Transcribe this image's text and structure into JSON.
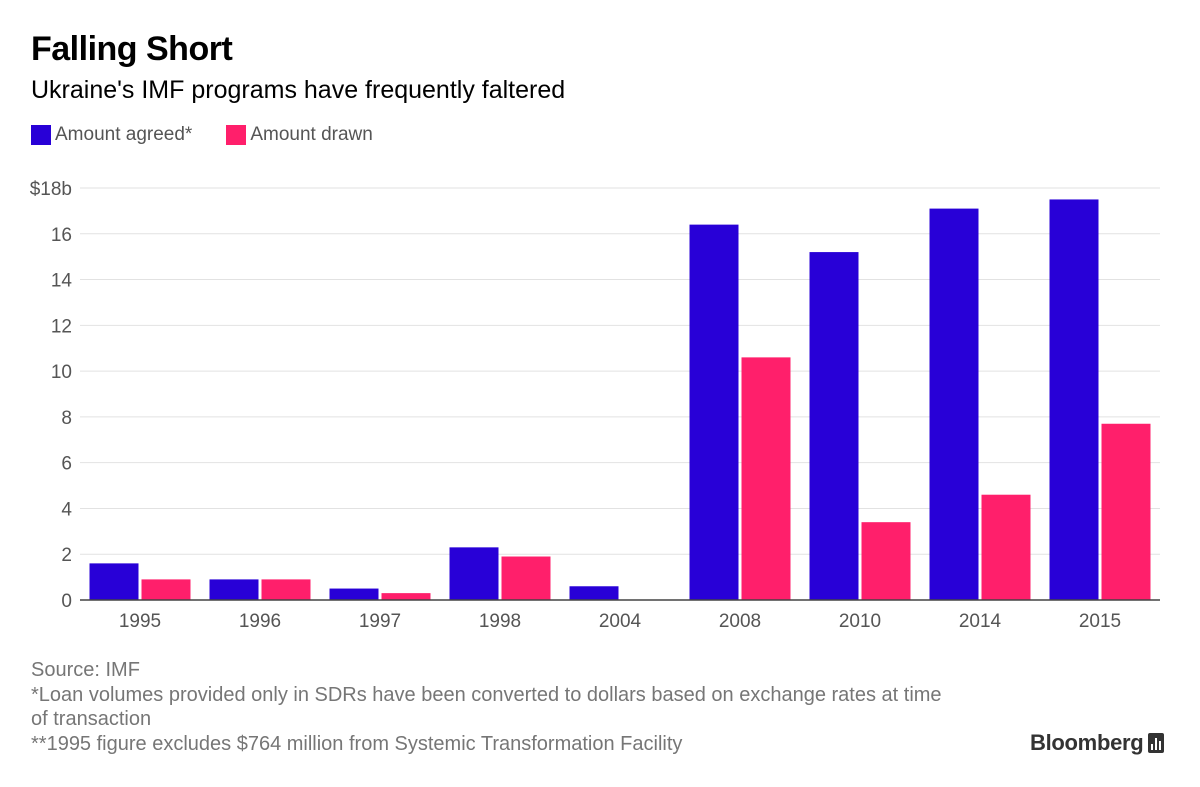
{
  "title": "Falling Short",
  "subtitle": "Ukraine's IMF programs have frequently faltered",
  "legend": [
    {
      "label": "Amount agreed*",
      "color": "#2800d7"
    },
    {
      "label": "Amount drawn",
      "color": "#ff1f6b"
    }
  ],
  "chart_data": {
    "type": "bar",
    "categories": [
      "1995",
      "1996",
      "1997",
      "1998",
      "2004",
      "2008",
      "2010",
      "2014",
      "2015"
    ],
    "series": [
      {
        "name": "Amount agreed*",
        "color": "#2800d7",
        "values": [
          1.6,
          0.9,
          0.5,
          2.3,
          0.6,
          16.4,
          15.2,
          17.1,
          17.5
        ]
      },
      {
        "name": "Amount drawn",
        "color": "#ff1f6b",
        "values": [
          0.9,
          0.9,
          0.3,
          1.9,
          0,
          10.6,
          3.4,
          4.6,
          7.7
        ]
      }
    ],
    "yticks": [
      "0",
      "2",
      "4",
      "6",
      "8",
      "10",
      "12",
      "14",
      "16",
      "$18b"
    ],
    "ylim": [
      0,
      18
    ],
    "grid": true,
    "legend_position": "top-left"
  },
  "footer": {
    "source": "Source: IMF",
    "note1": "*Loan volumes provided only in SDRs have been converted to dollars based on exchange rates at time of transaction",
    "note2": "**1995 figure excludes $764 million from Systemic Transformation Facility"
  },
  "brand": {
    "name": "Bloomberg",
    "icon": "bloomberg-chart-icon"
  }
}
